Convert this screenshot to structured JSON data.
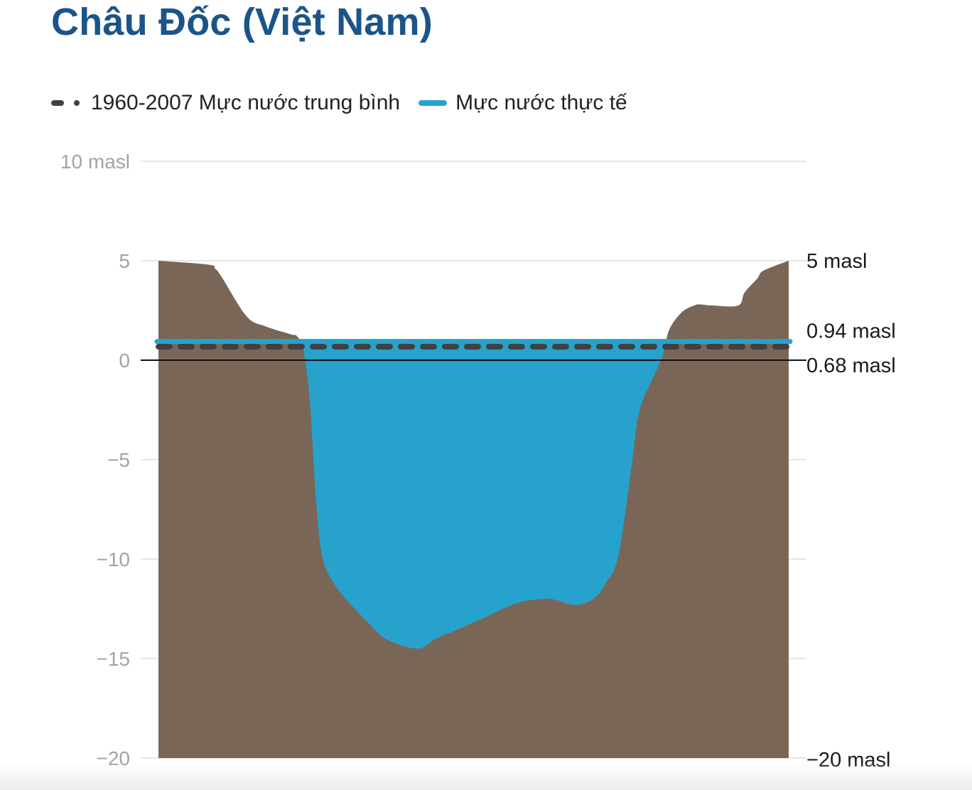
{
  "title": "Châu Đốc (Việt Nam)",
  "legend": {
    "average_label": "1960-2007 Mực nước trung bình",
    "actual_label": "Mực nước thực tế"
  },
  "colors": {
    "title": "#1b5489",
    "riverbed": "#7a6656",
    "water": "#27a2cc",
    "average_line": "#404040",
    "zero_line": "#111111",
    "grid": "#e6e6e6"
  },
  "chart_data": {
    "type": "area",
    "title": "Châu Đốc (Việt Nam)",
    "xlabel": "",
    "ylabel": "",
    "ylim": [
      -20,
      10
    ],
    "y_ticks": [
      10,
      5,
      0,
      -5,
      -10,
      -15,
      -20
    ],
    "y_tick_labels": [
      "10 masl",
      "5",
      "0",
      "−5",
      "−10",
      "−15",
      "−20"
    ],
    "grid": true,
    "series": [
      {
        "name": "1960-2007 Mực nước trung bình",
        "type": "dashed-line",
        "value": 0.68
      },
      {
        "name": "Mực nước thực tế",
        "type": "line",
        "value": 0.94
      }
    ],
    "riverbed_profile": {
      "x": [
        0,
        0.08,
        0.09,
        0.1,
        0.14,
        0.17,
        0.21,
        0.22,
        0.23,
        0.24,
        0.25,
        0.26,
        0.28,
        0.3,
        0.33,
        0.36,
        0.41,
        0.44,
        0.47,
        0.52,
        0.57,
        0.62,
        0.66,
        0.69,
        0.71,
        0.73,
        0.75,
        0.76,
        0.77,
        0.78,
        0.8,
        0.81,
        0.83,
        0.85,
        0.86,
        0.88,
        0.92,
        0.93,
        0.95,
        0.96,
        1.0
      ],
      "y": [
        5.0,
        4.8,
        4.6,
        4.2,
        2.2,
        1.7,
        1.3,
        1.2,
        0.5,
        -2.0,
        -7.0,
        -9.9,
        -11.3,
        -12.1,
        -13.1,
        -14.0,
        -14.5,
        -14.0,
        -13.6,
        -12.9,
        -12.2,
        -12.0,
        -12.3,
        -12.0,
        -11.2,
        -9.8,
        -5.5,
        -3.0,
        -1.9,
        -1.2,
        0.2,
        1.5,
        2.4,
        2.75,
        2.8,
        2.75,
        2.75,
        3.4,
        4.1,
        4.5,
        5.0
      ]
    },
    "right_labels": [
      "5 masl",
      "0.94 masl",
      "0.68 masl",
      "−20 masl"
    ],
    "right_label_values": [
      5,
      0.94,
      0.68,
      -20
    ]
  }
}
